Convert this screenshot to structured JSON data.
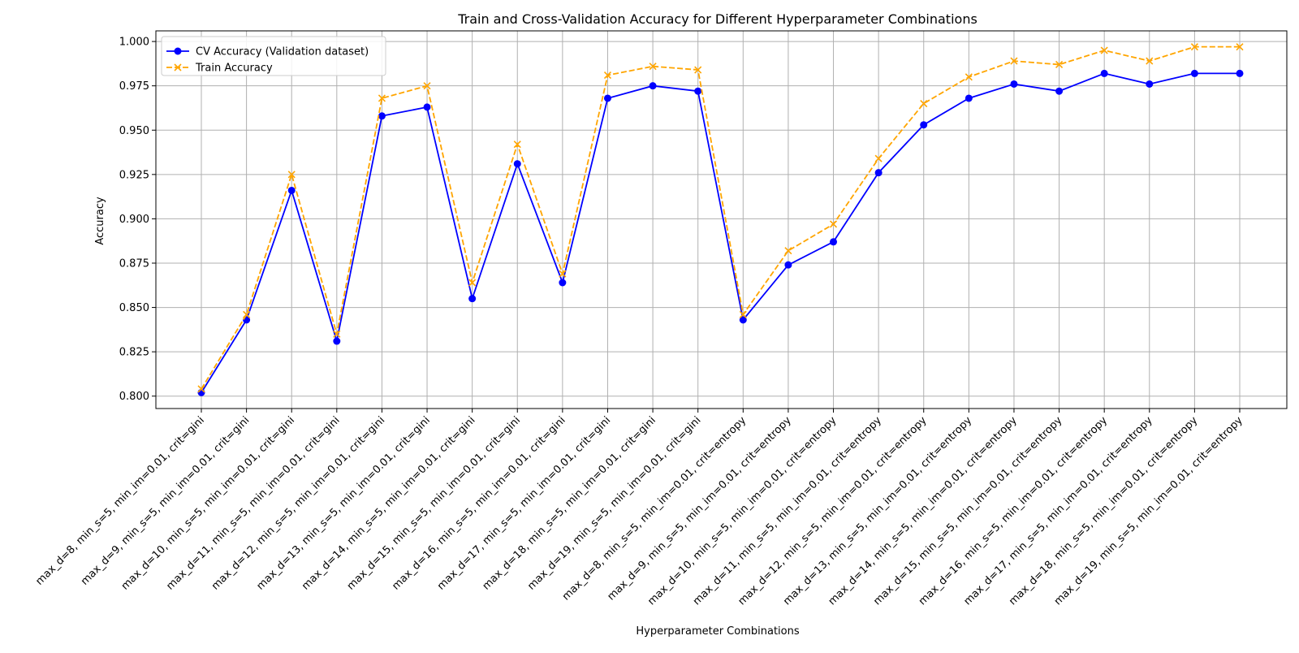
{
  "chart_data": {
    "type": "line",
    "title": "Train and Cross-Validation Accuracy for Different Hyperparameter Combinations",
    "xlabel": "Hyperparameter Combinations",
    "ylabel": "Accuracy",
    "ylim": [
      0.793,
      1.006
    ],
    "yticks": [
      "0.800",
      "0.825",
      "0.850",
      "0.875",
      "0.900",
      "0.925",
      "0.950",
      "0.975",
      "1.000"
    ],
    "grid": true,
    "legend_position": "upper left",
    "categories": [
      "max_d=8, min_s=5, min_im=0.01, crit=gini",
      "max_d=9, min_s=5, min_im=0.01, crit=gini",
      "max_d=10, min_s=5, min_im=0.01, crit=gini",
      "max_d=11, min_s=5, min_im=0.01, crit=gini",
      "max_d=12, min_s=5, min_im=0.01, crit=gini",
      "max_d=13, min_s=5, min_im=0.01, crit=gini",
      "max_d=14, min_s=5, min_im=0.01, crit=gini",
      "max_d=15, min_s=5, min_im=0.01, crit=gini",
      "max_d=16, min_s=5, min_im=0.01, crit=gini",
      "max_d=17, min_s=5, min_im=0.01, crit=gini",
      "max_d=18, min_s=5, min_im=0.01, crit=gini",
      "max_d=19, min_s=5, min_im=0.01, crit=gini",
      "max_d=8, min_s=5, min_im=0.01, crit=entropy",
      "max_d=9, min_s=5, min_im=0.01, crit=entropy",
      "max_d=10, min_s=5, min_im=0.01, crit=entropy",
      "max_d=11, min_s=5, min_im=0.01, crit=entropy",
      "max_d=12, min_s=5, min_im=0.01, crit=entropy",
      "max_d=13, min_s=5, min_im=0.01, crit=entropy",
      "max_d=14, min_s=5, min_im=0.01, crit=entropy",
      "max_d=15, min_s=5, min_im=0.01, crit=entropy",
      "max_d=16, min_s=5, min_im=0.01, crit=entropy",
      "max_d=17, min_s=5, min_im=0.01, crit=entropy",
      "max_d=18, min_s=5, min_im=0.01, crit=entropy",
      "max_d=19, min_s=5, min_im=0.01, crit=entropy"
    ],
    "series": [
      {
        "name": "CV Accuracy (Validation dataset)",
        "color": "#0000ff",
        "marker": "circle",
        "linestyle": "solid",
        "values": [
          0.802,
          0.843,
          0.916,
          0.831,
          0.958,
          0.963,
          0.855,
          0.931,
          0.864,
          0.968,
          0.975,
          0.972,
          0.843,
          0.874,
          0.887,
          0.926,
          0.953,
          0.968,
          0.976,
          0.972,
          0.982,
          0.976,
          0.982,
          0.982
        ]
      },
      {
        "name": "Train Accuracy",
        "color": "#ffa500",
        "marker": "x",
        "linestyle": "dashed",
        "values": [
          0.804,
          0.846,
          0.925,
          0.835,
          0.968,
          0.975,
          0.864,
          0.942,
          0.869,
          0.981,
          0.986,
          0.984,
          0.846,
          0.882,
          0.897,
          0.934,
          0.965,
          0.98,
          0.989,
          0.987,
          0.995,
          0.989,
          0.997,
          0.997
        ]
      }
    ]
  }
}
